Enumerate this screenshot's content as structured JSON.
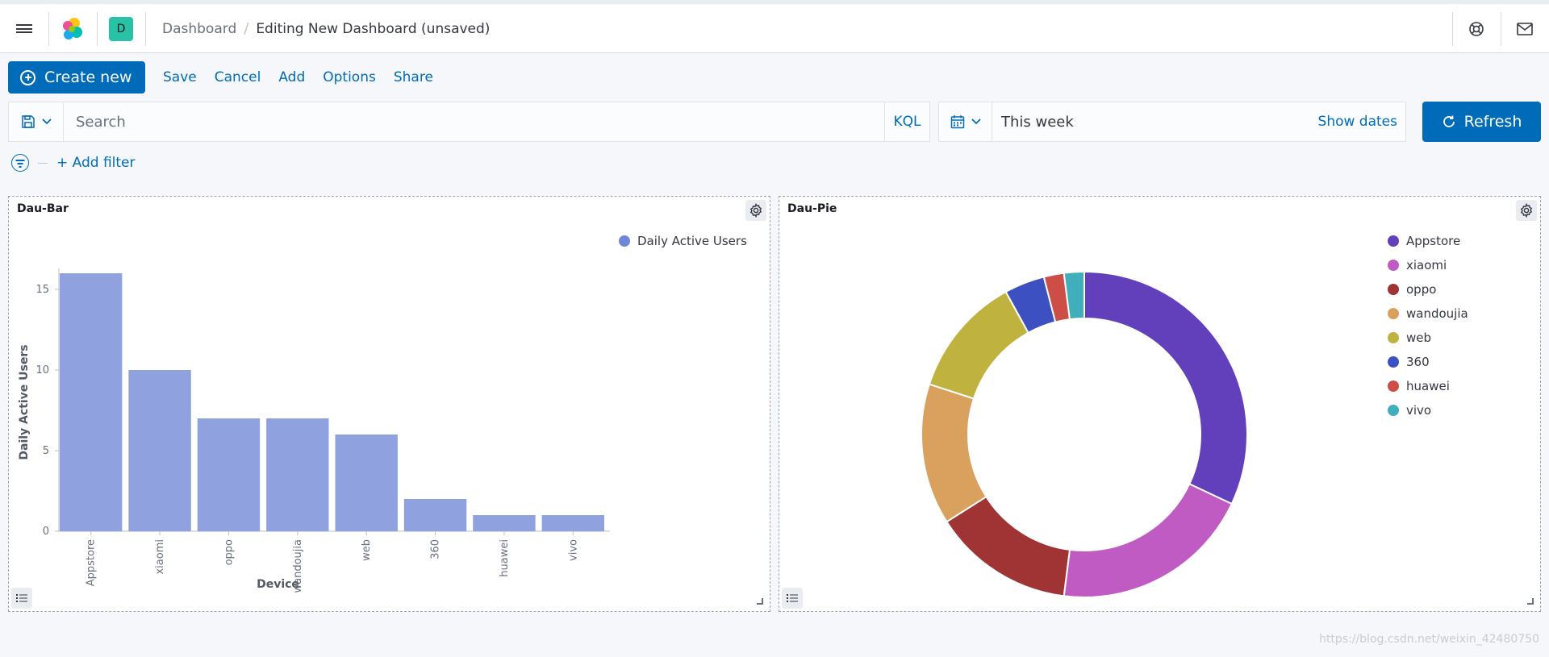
{
  "header": {
    "breadcrumb_root": "Dashboard",
    "breadcrumb_current": "Editing New Dashboard (unsaved)",
    "space_initial": "D"
  },
  "topnav": {
    "create_new": "Create new",
    "links": [
      "Save",
      "Cancel",
      "Add",
      "Options",
      "Share"
    ]
  },
  "query": {
    "placeholder": "Search",
    "language": "KQL"
  },
  "date_picker": {
    "value": "This week",
    "show_dates": "Show dates"
  },
  "refresh_label": "Refresh",
  "filters": {
    "add_filter": "+ Add filter"
  },
  "panels": {
    "bar_title": "Dau-Bar",
    "pie_title": "Dau-Pie"
  },
  "colors": {
    "accent": "#006bb8",
    "bar": "#8fa1de"
  },
  "watermark": "https://blog.csdn.net/weixin_42480750",
  "chart_data": [
    {
      "type": "bar",
      "title": "Dau-Bar",
      "xlabel": "Device",
      "ylabel": "Daily Active Users",
      "categories": [
        "Appstore",
        "xiaomi",
        "oppo",
        "wandoujia",
        "web",
        "360",
        "huawei",
        "vivo"
      ],
      "series": [
        {
          "name": "Daily Active Users",
          "values": [
            16,
            10,
            7,
            7,
            6,
            2,
            1,
            1
          ],
          "color": "#8fa1de"
        }
      ],
      "yticks": [
        0,
        5,
        10,
        15
      ],
      "ylim": [
        0,
        16
      ],
      "legend": "top-right"
    },
    {
      "type": "pie",
      "donut": true,
      "title": "Dau-Pie",
      "categories": [
        "Appstore",
        "xiaomi",
        "oppo",
        "wandoujia",
        "web",
        "360",
        "huawei",
        "vivo"
      ],
      "values": [
        16,
        10,
        7,
        7,
        6,
        2,
        1,
        1
      ],
      "colors": [
        "#6340bb",
        "#c15bc4",
        "#a03434",
        "#d9a15d",
        "#c0b23e",
        "#3d50c2",
        "#cd4e46",
        "#41aebb"
      ],
      "legend": "right"
    }
  ]
}
